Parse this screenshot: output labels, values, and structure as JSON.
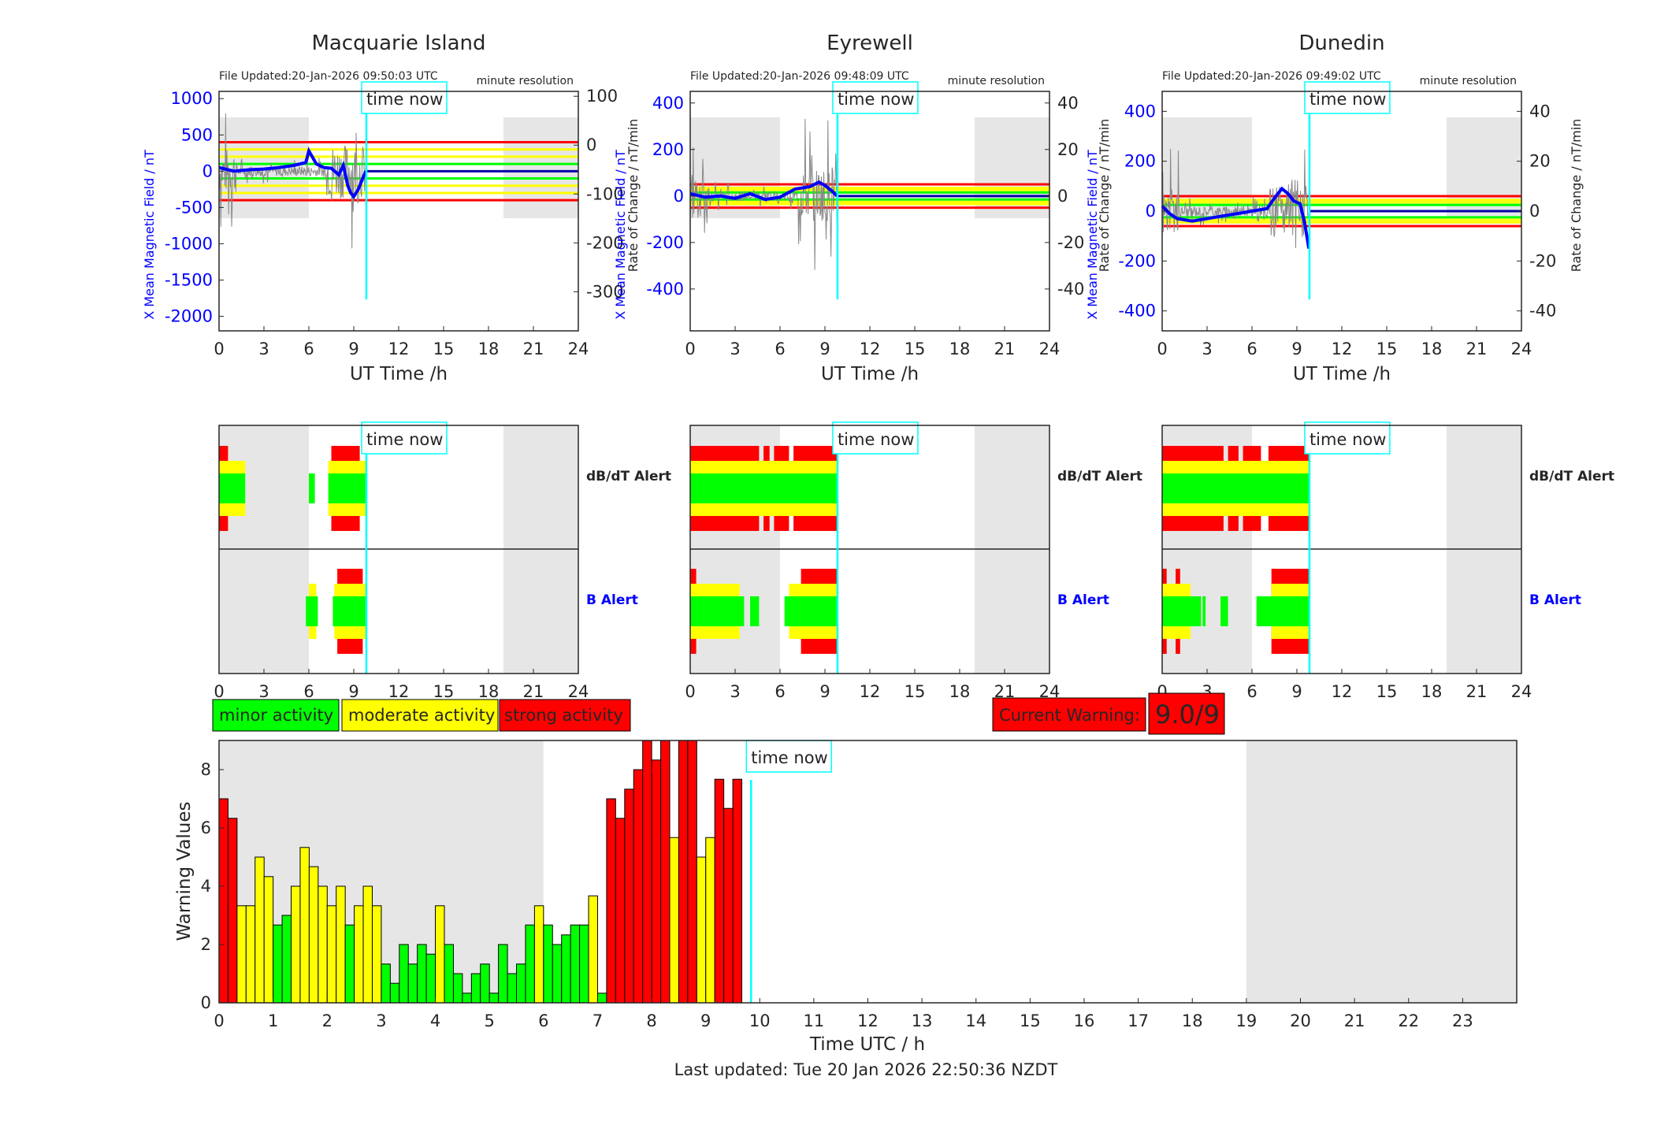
{
  "colors": {
    "minor": "#00ff00",
    "moderate": "#ffff00",
    "strong": "#ff0000",
    "field_trace": "#0000ff",
    "time_now": "#00ffff",
    "night_shade": "#e6e6e6",
    "left_axis": "#0000ff"
  },
  "time_now_label": "time now",
  "time_now_hour": 9.84,
  "alert_labels": {
    "dbdt": "dB/dT Alert",
    "b": "B Alert"
  },
  "stations": [
    {
      "name": "Macquarie Island",
      "file_updated": "File Updated:20-Jan-2026 09:50:03 UTC",
      "resolution": "minute resolution",
      "left_label": "X Mean Magnetic Field / nT",
      "right_label": "Rate of Change / nT/min",
      "left_ticks": [
        "1000",
        "500",
        "0",
        "-500",
        "-1000",
        "-1500",
        "-2000"
      ],
      "right_ticks": [
        "100",
        "0",
        "-100",
        "-200",
        "-300"
      ],
      "x_ticks": [
        "0",
        "3",
        "6",
        "9",
        "12",
        "15",
        "18",
        "21",
        "24"
      ],
      "xlabel": "UT Time /h",
      "ylim_left": [
        -2200,
        1100
      ],
      "ylim_right": [
        -380,
        110
      ],
      "night_shade_hours": [
        [
          0,
          6
        ],
        [
          19,
          24
        ]
      ],
      "thresholds": {
        "red": 400,
        "yellow": 300,
        "yellow2": 200,
        "green": 100
      },
      "field_trace": [
        [
          0,
          50
        ],
        [
          1,
          0
        ],
        [
          2,
          20
        ],
        [
          3,
          30
        ],
        [
          4,
          50
        ],
        [
          5,
          80
        ],
        [
          5.8,
          120
        ],
        [
          6,
          280
        ],
        [
          6.5,
          100
        ],
        [
          7,
          50
        ],
        [
          7.5,
          40
        ],
        [
          8,
          -50
        ],
        [
          8.3,
          80
        ],
        [
          8.6,
          -200
        ],
        [
          8.8,
          -300
        ],
        [
          9,
          -350
        ],
        [
          9.3,
          -250
        ],
        [
          9.6,
          -100
        ],
        [
          9.8,
          0
        ]
      ],
      "dbdt_alert": {
        "green": [
          [
            0,
            1.75
          ],
          [
            6,
            6.4
          ],
          [
            7.3,
            9.9
          ]
        ],
        "yellow": [
          [
            0,
            1.75
          ],
          [
            7.3,
            9.9
          ]
        ],
        "red": [
          [
            0,
            0.6
          ],
          [
            7.5,
            9.4
          ]
        ]
      },
      "b_alert": {
        "green": [
          [
            5.8,
            6.6
          ],
          [
            7.6,
            9.9
          ]
        ],
        "yellow": [
          [
            6,
            6.5
          ],
          [
            7.7,
            9.9
          ]
        ],
        "red": [
          [
            7.9,
            9.6
          ]
        ]
      }
    },
    {
      "name": "Eyrewell",
      "file_updated": "File Updated:20-Jan-2026 09:48:09 UTC",
      "resolution": "minute resolution",
      "left_label": "X Mean Magnetic Field / nT",
      "right_label": "Rate of Change / nT/min",
      "left_ticks": [
        "400",
        "200",
        "0",
        "-200",
        "-400"
      ],
      "right_ticks": [
        "40",
        "20",
        "0",
        "-20",
        "-40"
      ],
      "x_ticks": [
        "0",
        "3",
        "6",
        "9",
        "12",
        "15",
        "18",
        "21",
        "24"
      ],
      "xlabel": "UT Time /h",
      "ylim_left": [
        -580,
        450
      ],
      "ylim_right": [
        -58,
        45
      ],
      "night_shade_hours": [
        [
          0,
          6
        ],
        [
          19,
          24
        ]
      ],
      "thresholds": {
        "red": 50,
        "yellow": 35,
        "yellow2": 25,
        "green": 15
      },
      "field_trace": [
        [
          0,
          10
        ],
        [
          1,
          -5
        ],
        [
          2,
          0
        ],
        [
          3,
          -10
        ],
        [
          4,
          10
        ],
        [
          5,
          -15
        ],
        [
          6,
          -5
        ],
        [
          7,
          30
        ],
        [
          8,
          40
        ],
        [
          8.6,
          60
        ],
        [
          9,
          45
        ],
        [
          9.5,
          20
        ],
        [
          9.8,
          0
        ]
      ],
      "dbdt_alert": {
        "green": [
          [
            0,
            9.8
          ]
        ],
        "yellow": [
          [
            0,
            9.8
          ]
        ],
        "red": [
          [
            0,
            4.6
          ],
          [
            4.9,
            5.3
          ],
          [
            5.6,
            6.6
          ],
          [
            6.9,
            9.8
          ]
        ]
      },
      "b_alert": {
        "green": [
          [
            0,
            3.6
          ],
          [
            4,
            4.6
          ],
          [
            6.3,
            9.8
          ]
        ],
        "yellow": [
          [
            0,
            3.3
          ],
          [
            6.6,
            9.8
          ]
        ],
        "red": [
          [
            0,
            0.4
          ],
          [
            7.4,
            9.8
          ]
        ]
      }
    },
    {
      "name": "Dunedin",
      "file_updated": "File Updated:20-Jan-2026 09:49:02 UTC",
      "resolution": "minute resolution",
      "left_label": "X Mean Magnetic Field / nT",
      "right_label": "Rate of Change / nT/min",
      "left_ticks": [
        "400",
        "200",
        "0",
        "-200",
        "-400"
      ],
      "right_ticks": [
        "40",
        "20",
        "0",
        "-20",
        "-40"
      ],
      "x_ticks": [
        "0",
        "3",
        "6",
        "9",
        "12",
        "15",
        "18",
        "21",
        "24"
      ],
      "xlabel": "UT Time /h",
      "ylim_left": [
        -480,
        480
      ],
      "ylim_right": [
        -48,
        48
      ],
      "night_shade_hours": [
        [
          0,
          6
        ],
        [
          19,
          24
        ]
      ],
      "thresholds": {
        "red": 60,
        "yellow": 45,
        "yellow2": 35,
        "green": 25
      },
      "field_trace": [
        [
          0,
          20
        ],
        [
          0.5,
          -10
        ],
        [
          1,
          -30
        ],
        [
          2,
          -40
        ],
        [
          3,
          -30
        ],
        [
          4,
          -20
        ],
        [
          5,
          -10
        ],
        [
          6,
          0
        ],
        [
          7,
          10
        ],
        [
          7.6,
          60
        ],
        [
          8,
          90
        ],
        [
          8.4,
          70
        ],
        [
          8.8,
          40
        ],
        [
          9.2,
          30
        ],
        [
          9.5,
          -40
        ],
        [
          9.8,
          -150
        ]
      ],
      "dbdt_alert": {
        "green": [
          [
            0,
            9.8
          ]
        ],
        "yellow": [
          [
            0,
            9.8
          ]
        ],
        "red": [
          [
            0,
            4.1
          ],
          [
            4.4,
            5.1
          ],
          [
            5.4,
            6.6
          ],
          [
            7.1,
            9.8
          ]
        ]
      },
      "b_alert": {
        "green": [
          [
            0,
            2.6
          ],
          [
            2.7,
            2.9
          ],
          [
            3.9,
            4.4
          ],
          [
            6.3,
            9.8
          ]
        ],
        "yellow": [
          [
            0,
            1.9
          ],
          [
            7.3,
            9.8
          ]
        ],
        "red": [
          [
            0,
            0.3
          ],
          [
            0.9,
            1.2
          ],
          [
            7.3,
            9.8
          ]
        ]
      }
    }
  ],
  "legend": {
    "minor": "minor activity",
    "moderate": "moderate activity",
    "strong": "strong activity"
  },
  "current_warning": {
    "label": "Current Warning:",
    "value": "9.0/9"
  },
  "chart_data": {
    "type": "bar",
    "ylabel": "Warning Values",
    "xlabel": "Time UTC / h",
    "xlim": [
      0,
      24
    ],
    "ylim": [
      0,
      9
    ],
    "x_ticks": [
      "0",
      "1",
      "2",
      "3",
      "4",
      "5",
      "6",
      "7",
      "8",
      "9",
      "10",
      "11",
      "12",
      "13",
      "14",
      "15",
      "16",
      "17",
      "18",
      "19",
      "20",
      "21",
      "22",
      "23"
    ],
    "y_ticks": [
      "0",
      "2",
      "4",
      "6",
      "8"
    ],
    "night_shade_hours": [
      [
        0,
        6
      ],
      [
        19,
        24
      ]
    ],
    "bin_hours": 0.1667,
    "values": [
      7,
      6.33,
      3.33,
      3.33,
      5,
      4.33,
      2.67,
      3,
      4,
      5.33,
      4.67,
      4,
      3.33,
      4,
      2.67,
      3.33,
      4,
      3.33,
      1.33,
      0.67,
      2,
      1.33,
      2,
      1.67,
      3.33,
      2,
      1,
      0.33,
      1,
      1.33,
      0.33,
      2,
      1,
      1.33,
      2.67,
      3.33,
      2.67,
      2,
      2.33,
      2.67,
      2.67,
      3.67,
      0.33,
      7,
      6.33,
      7.33,
      8,
      9,
      8.33,
      9,
      5.67,
      9,
      9,
      5,
      5.67,
      7.67,
      6.67,
      7.67
    ],
    "levels": [
      "strong",
      "strong",
      "moderate",
      "moderate",
      "moderate",
      "moderate",
      "minor",
      "minor",
      "moderate",
      "moderate",
      "moderate",
      "moderate",
      "moderate",
      "moderate",
      "minor",
      "moderate",
      "moderate",
      "moderate",
      "minor",
      "minor",
      "minor",
      "minor",
      "minor",
      "minor",
      "moderate",
      "minor",
      "minor",
      "minor",
      "minor",
      "minor",
      "minor",
      "minor",
      "minor",
      "minor",
      "minor",
      "moderate",
      "minor",
      "minor",
      "minor",
      "minor",
      "minor",
      "moderate",
      "minor",
      "strong",
      "strong",
      "strong",
      "strong",
      "strong",
      "strong",
      "strong",
      "moderate",
      "strong",
      "strong",
      "moderate",
      "moderate",
      "strong",
      "strong",
      "strong"
    ],
    "footer": "Last updated: Tue 20 Jan 2026 22:50:36 NZDT"
  }
}
